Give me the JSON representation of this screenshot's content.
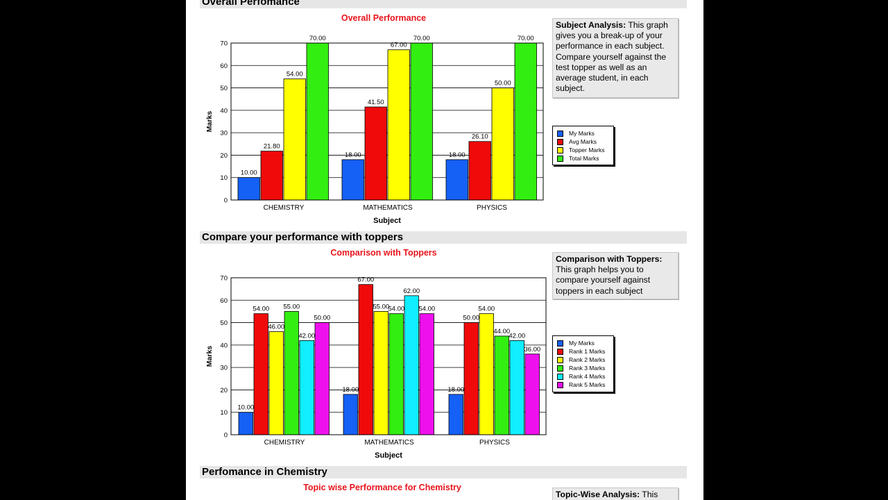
{
  "sections": [
    {
      "heading": "Overall Perfomance"
    },
    {
      "heading": "Compare your performance with toppers"
    },
    {
      "heading": "Perfomance in Chemistry"
    }
  ],
  "notes": {
    "subject": {
      "title": "Subject Analysis:",
      "text": " This graph gives you a break-up of your performance in each subject. Compare yourself against the test topper as well as an average student, in each subject."
    },
    "toppers": {
      "title": "Comparison with Toppers:",
      "text": " This graph helps you to compare yourself against toppers in each subject"
    },
    "topic": {
      "title": "Topic-Wise Analysis:",
      "text": " This"
    }
  },
  "colors": {
    "section_bar": "#e6e6e6",
    "chart_title": "#e8141c",
    "blue": "#1560f5",
    "red": "#f00a0a",
    "yellow": "#ffff00",
    "green": "#33ee11",
    "cyan": "#11eeff",
    "magenta": "#ee11ee"
  },
  "chart_data": [
    {
      "type": "bar",
      "title": "Overall Performance",
      "xlabel": "Subject",
      "ylabel": "Marks",
      "ylim": [
        0,
        70
      ],
      "yticks": [
        0,
        10,
        20,
        30,
        40,
        50,
        60,
        70
      ],
      "grid": true,
      "legend": "right",
      "categories": [
        "CHEMISTRY",
        "MATHEMATICS",
        "PHYSICS"
      ],
      "series": [
        {
          "name": "My Marks",
          "color": "#1560f5",
          "values": [
            10,
            18,
            18
          ],
          "labels": [
            "10.00",
            "18.00",
            "18.00"
          ]
        },
        {
          "name": "Avg Marks",
          "color": "#f00a0a",
          "values": [
            21.8,
            41.5,
            26.1
          ],
          "labels": [
            "21.80",
            "41.50",
            "26.10"
          ]
        },
        {
          "name": "Topper Marks",
          "color": "#ffff00",
          "values": [
            54,
            67,
            50
          ],
          "labels": [
            "54.00",
            "67.00",
            "50.00"
          ]
        },
        {
          "name": "Total Marks",
          "color": "#33ee11",
          "values": [
            70,
            70,
            70
          ],
          "labels": [
            "70.00",
            "70.00",
            "70.00"
          ]
        }
      ]
    },
    {
      "type": "bar",
      "title": "Comparison with Toppers",
      "xlabel": "Subject",
      "ylabel": "Marks",
      "ylim": [
        0,
        70
      ],
      "yticks": [
        0,
        10,
        20,
        30,
        40,
        50,
        60,
        70
      ],
      "grid": true,
      "legend": "right",
      "categories": [
        "CHEMISTRY",
        "MATHEMATICS",
        "PHYSICS"
      ],
      "series": [
        {
          "name": "My Marks",
          "color": "#1560f5",
          "values": [
            10,
            18,
            18
          ],
          "labels": [
            "10.00",
            "18.00",
            "18.00"
          ]
        },
        {
          "name": "Rank 1 Marks",
          "color": "#f00a0a",
          "values": [
            54,
            67,
            50
          ],
          "labels": [
            "54.00",
            "67.00",
            "50.00"
          ]
        },
        {
          "name": "Rank 2 Marks",
          "color": "#ffff00",
          "values": [
            46,
            55,
            54
          ],
          "labels": [
            "46.00",
            "55.00",
            "54.00"
          ]
        },
        {
          "name": "Rank 3 Marks",
          "color": "#33ee11",
          "values": [
            55,
            54,
            44
          ],
          "labels": [
            "55.00",
            "54.00",
            "44.00"
          ]
        },
        {
          "name": "Rank 4 Marks",
          "color": "#11eeff",
          "values": [
            42,
            62,
            42
          ],
          "labels": [
            "42.00",
            "62.00",
            "42.00"
          ]
        },
        {
          "name": "Rank 5 Marks",
          "color": "#ee11ee",
          "values": [
            50,
            54,
            36
          ],
          "labels": [
            "50.00",
            "54.00",
            "36.00"
          ]
        }
      ]
    },
    {
      "type": "bar",
      "title": "Topic wise Performance for Chemistry"
    }
  ]
}
